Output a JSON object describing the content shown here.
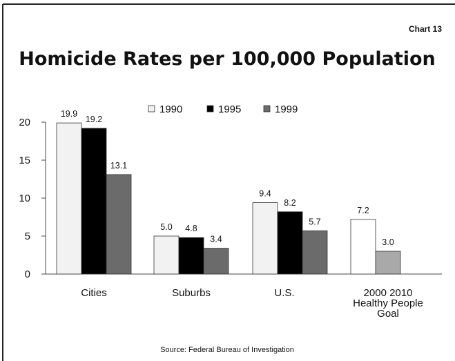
{
  "chart_number": "Chart 13",
  "source": "Source: Federal Bureau of Investigation",
  "colors": {
    "1990": "#f2f2f2",
    "1995": "#000000",
    "1999": "#6b6b6b",
    "2000": "#ffffff",
    "2010": "#a9a9a9"
  },
  "chart_data": {
    "type": "bar",
    "title": "Homicide Rates per 100,000 Population",
    "ylim": [
      0,
      20
    ],
    "yticks": [
      "0",
      "5",
      "10",
      "15",
      "20"
    ],
    "grid": false,
    "legend_position": "top",
    "legend": [
      "1990",
      "1995",
      "1999"
    ],
    "groups": [
      {
        "category": [
          "Cities"
        ],
        "bars": [
          {
            "series": "1990",
            "value": 19.9,
            "label": "19.9"
          },
          {
            "series": "1995",
            "value": 19.2,
            "label": "19.2"
          },
          {
            "series": "1999",
            "value": 13.1,
            "label": "13.1"
          }
        ]
      },
      {
        "category": [
          "Suburbs"
        ],
        "bars": [
          {
            "series": "1990",
            "value": 5.0,
            "label": "5.0"
          },
          {
            "series": "1995",
            "value": 4.8,
            "label": "4.8"
          },
          {
            "series": "1999",
            "value": 3.4,
            "label": "3.4"
          }
        ]
      },
      {
        "category": [
          "U.S."
        ],
        "bars": [
          {
            "series": "1990",
            "value": 9.4,
            "label": "9.4"
          },
          {
            "series": "1995",
            "value": 8.2,
            "label": "8.2"
          },
          {
            "series": "1999",
            "value": 5.7,
            "label": "5.7"
          }
        ]
      },
      {
        "category": [
          "2000 2010",
          "Healthy People",
          "Goal"
        ],
        "bars": [
          {
            "series": "2000",
            "value": 7.2,
            "label": "7.2"
          },
          {
            "series": "2010",
            "value": 3.0,
            "label": "3.0"
          }
        ]
      }
    ]
  }
}
